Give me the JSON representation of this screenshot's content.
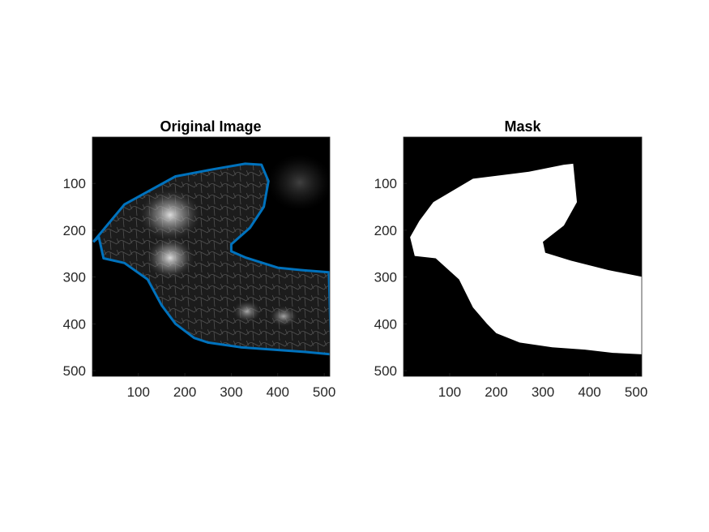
{
  "chart_data": [
    {
      "type": "image",
      "title": "Original Image",
      "xlim": [
        1,
        512
      ],
      "ylim": [
        1,
        512
      ],
      "y_reversed": true,
      "xticks": [
        100,
        200,
        300,
        400,
        500
      ],
      "yticks": [
        100,
        200,
        300,
        400,
        500
      ],
      "image_style": "grayscale fluorescence microscopy",
      "overlay": {
        "type": "contour",
        "color": "#0072BD",
        "points": [
          [
            3,
            225
          ],
          [
            70,
            145
          ],
          [
            180,
            85
          ],
          [
            260,
            70
          ],
          [
            330,
            58
          ],
          [
            365,
            60
          ],
          [
            380,
            95
          ],
          [
            370,
            150
          ],
          [
            340,
            195
          ],
          [
            300,
            230
          ],
          [
            300,
            245
          ],
          [
            330,
            258
          ],
          [
            400,
            280
          ],
          [
            450,
            285
          ],
          [
            510,
            290
          ],
          [
            515,
            465
          ],
          [
            460,
            460
          ],
          [
            390,
            455
          ],
          [
            320,
            450
          ],
          [
            250,
            440
          ],
          [
            220,
            430
          ],
          [
            180,
            400
          ],
          [
            150,
            360
          ],
          [
            120,
            305
          ],
          [
            70,
            270
          ],
          [
            25,
            260
          ],
          [
            15,
            215
          ],
          [
            3,
            225
          ]
        ]
      }
    },
    {
      "type": "image",
      "title": "Mask",
      "xlim": [
        1,
        512
      ],
      "ylim": [
        1,
        512
      ],
      "y_reversed": true,
      "xticks": [
        100,
        200,
        300,
        400,
        500
      ],
      "yticks": [
        100,
        200,
        300,
        400,
        500
      ],
      "image_style": "binary mask",
      "mask_color": "#ffffff",
      "background_color": "#000000",
      "mask_points": [
        [
          65,
          140
        ],
        [
          150,
          90
        ],
        [
          270,
          75
        ],
        [
          345,
          60
        ],
        [
          365,
          58
        ],
        [
          373,
          140
        ],
        [
          345,
          190
        ],
        [
          300,
          225
        ],
        [
          305,
          248
        ],
        [
          360,
          265
        ],
        [
          440,
          285
        ],
        [
          515,
          300
        ],
        [
          515,
          465
        ],
        [
          450,
          462
        ],
        [
          390,
          455
        ],
        [
          320,
          450
        ],
        [
          250,
          440
        ],
        [
          200,
          420
        ],
        [
          180,
          400
        ],
        [
          150,
          365
        ],
        [
          120,
          305
        ],
        [
          70,
          260
        ],
        [
          25,
          255
        ],
        [
          15,
          215
        ],
        [
          35,
          180
        ],
        [
          65,
          140
        ]
      ]
    }
  ]
}
